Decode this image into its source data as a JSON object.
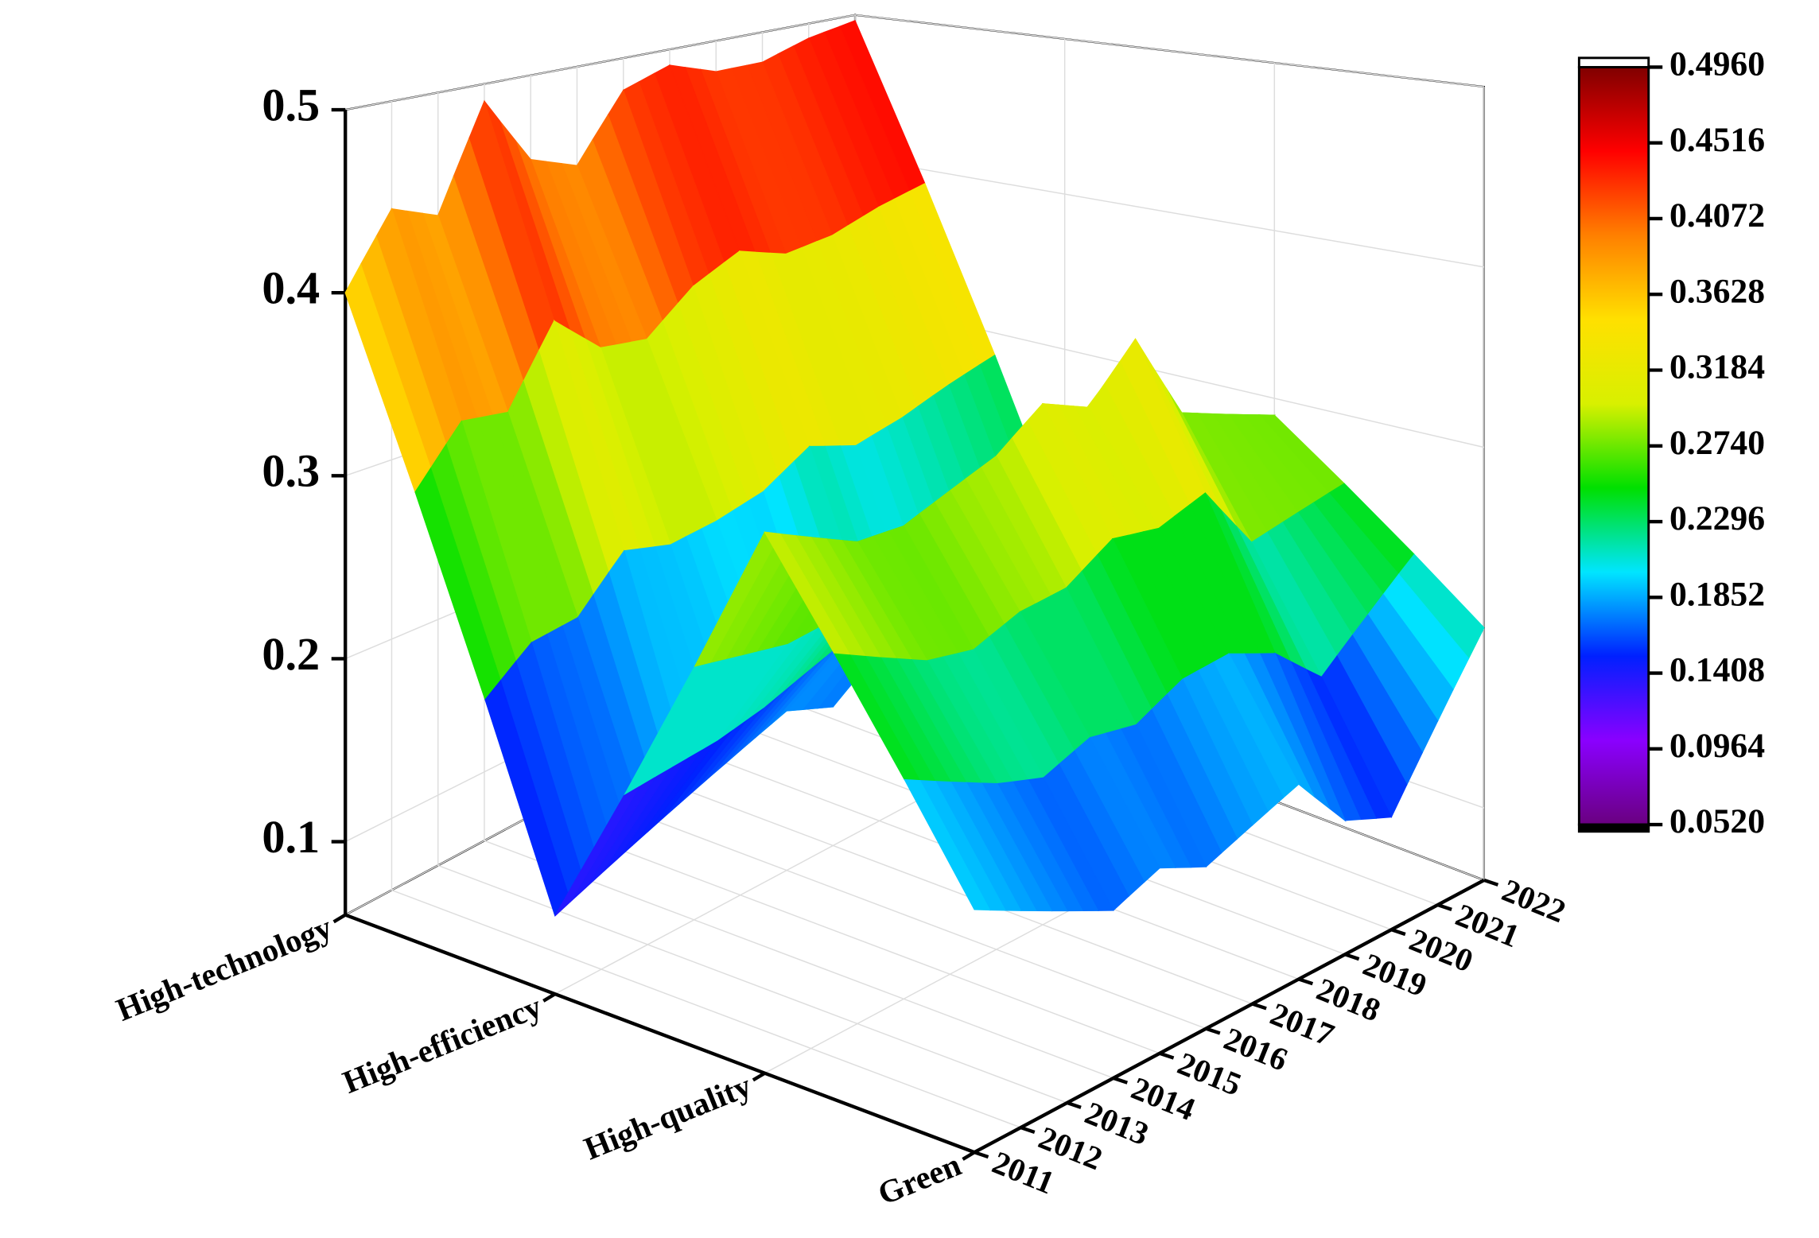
{
  "chart_data": {
    "type": "surface",
    "categories": [
      "High-technology",
      "High-efficiency",
      "High-quality",
      "Green"
    ],
    "x": [
      2011,
      2012,
      2013,
      2014,
      2015,
      2016,
      2017,
      2018,
      2019,
      2020,
      2021,
      2022
    ],
    "z": [
      [
        0.4,
        0.44,
        0.43,
        0.49,
        0.45,
        0.44,
        0.48,
        0.49,
        0.48,
        0.48,
        0.49,
        0.496
      ],
      [
        0.1,
        0.11,
        0.12,
        0.13,
        0.14,
        0.15,
        0.14,
        0.16,
        0.15,
        0.16,
        0.17,
        0.18
      ],
      [
        0.32,
        0.31,
        0.3,
        0.3,
        0.31,
        0.32,
        0.34,
        0.33,
        0.36,
        0.31,
        0.3,
        0.29
      ],
      [
        0.17,
        0.16,
        0.15,
        0.14,
        0.15,
        0.14,
        0.15,
        0.16,
        0.13,
        0.12,
        0.16,
        0.2
      ]
    ],
    "zlim": [
      0.06,
      0.5
    ],
    "zticks": [
      0.1,
      0.2,
      0.3,
      0.4,
      0.5
    ],
    "clim": [
      0.052,
      0.496
    ],
    "cticks": [
      {
        "value": 0.052,
        "label": "0.0520"
      },
      {
        "value": 0.0964,
        "label": "0.0964"
      },
      {
        "value": 0.1408,
        "label": "0.1408"
      },
      {
        "value": 0.1852,
        "label": "0.1852"
      },
      {
        "value": 0.2296,
        "label": "0.2296"
      },
      {
        "value": 0.274,
        "label": "0.2740"
      },
      {
        "value": 0.3184,
        "label": "0.3184"
      },
      {
        "value": 0.3628,
        "label": "0.3628"
      },
      {
        "value": 0.4072,
        "label": "0.4072"
      },
      {
        "value": 0.4516,
        "label": "0.4516"
      },
      {
        "value": 0.496,
        "label": "0.4960"
      }
    ],
    "colormap": [
      "#6a0080",
      "#8a00ff",
      "#0020ff",
      "#00e5ff",
      "#00e000",
      "#d8f000",
      "#ffe000",
      "#ff8000",
      "#ff0000",
      "#800000"
    ],
    "grid": true
  }
}
